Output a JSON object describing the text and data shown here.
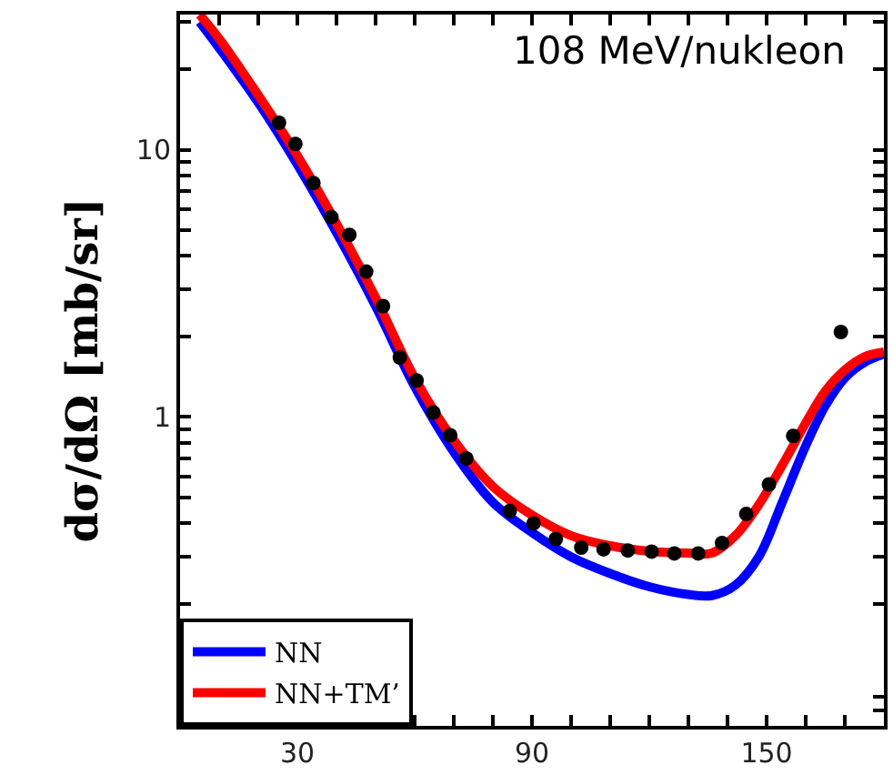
{
  "chart_data": {
    "type": "line",
    "ylabel": "dσ/dΩ [mb/sr]",
    "annotations": [
      "108 MeV/nukleon"
    ],
    "log": "y",
    "xlim": [
      0,
      180
    ],
    "ylim": [
      0.07,
      32
    ],
    "xticks": [
      {
        "value": 10,
        "label": null
      },
      {
        "value": 20,
        "label": null
      },
      30,
      {
        "value": 40,
        "label": null
      },
      {
        "value": 50,
        "label": null
      },
      {
        "value": 60,
        "label": null
      },
      {
        "value": 70,
        "label": null
      },
      {
        "value": 80,
        "label": null
      },
      90,
      {
        "value": 100,
        "label": null
      },
      {
        "value": 110,
        "label": null
      },
      {
        "value": 120,
        "label": null
      },
      {
        "value": 130,
        "label": null
      },
      {
        "value": 140,
        "label": null
      },
      150,
      {
        "value": 160,
        "label": null
      },
      {
        "value": 170,
        "label": null
      }
    ],
    "yticks": [
      {
        "value": 0.08,
        "label": null
      },
      {
        "value": 0.09,
        "label": null
      },
      {
        "value": 0.2,
        "label": null
      },
      {
        "value": 0.3,
        "label": null
      },
      {
        "value": 0.4,
        "label": null
      },
      {
        "value": 0.5,
        "label": null
      },
      {
        "value": 0.6,
        "label": null
      },
      {
        "value": 0.7,
        "label": null
      },
      {
        "value": 0.8,
        "label": null
      },
      {
        "value": 0.9,
        "label": null
      },
      1,
      {
        "value": 2,
        "label": null
      },
      {
        "value": 3,
        "label": null
      },
      {
        "value": 4,
        "label": null
      },
      {
        "value": 5,
        "label": null
      },
      {
        "value": 6,
        "label": null
      },
      {
        "value": 7,
        "label": null
      },
      {
        "value": 8,
        "label": null
      },
      {
        "value": 9,
        "label": null
      },
      10,
      {
        "value": 20,
        "label": null
      },
      {
        "value": 30,
        "label": null
      }
    ],
    "legend": "bottom left",
    "series": [
      {
        "name": "NN",
        "color": "#0000ff",
        "x": [
          5,
          10,
          20,
          30,
          40,
          50,
          60,
          70,
          80,
          90,
          100,
          110,
          120,
          130,
          136,
          142,
          148,
          154,
          160,
          165,
          170,
          175,
          180
        ],
        "values": [
          30,
          24,
          15,
          8.8,
          4.9,
          2.6,
          1.3,
          0.74,
          0.48,
          0.37,
          0.3,
          0.26,
          0.232,
          0.217,
          0.215,
          0.235,
          0.3,
          0.48,
          0.78,
          1.1,
          1.4,
          1.6,
          1.72
        ]
      },
      {
        "name": "NN+TM’",
        "color": "#ff0000",
        "x": [
          5,
          10,
          20,
          30,
          40,
          50,
          60,
          70,
          80,
          90,
          100,
          110,
          120,
          130,
          136,
          142,
          148,
          154,
          160,
          165,
          170,
          175,
          180
        ],
        "values": [
          32,
          26,
          16,
          9.5,
          5.3,
          2.8,
          1.4,
          0.82,
          0.55,
          0.43,
          0.36,
          0.33,
          0.315,
          0.31,
          0.31,
          0.36,
          0.47,
          0.66,
          0.95,
          1.25,
          1.5,
          1.68,
          1.75
        ]
      },
      {
        "type": "scatter",
        "marker": "circle",
        "color": "#000000",
        "x": [
          25.3,
          29.5,
          34.1,
          38.7,
          43.3,
          47.6,
          51.9,
          56.2,
          60.5,
          64.8,
          69.1,
          73.2,
          84.3,
          90.4,
          96.1,
          102.6,
          108.3,
          114.5,
          120.6,
          126.4,
          132.5,
          138.6,
          144.8,
          150.6,
          156.8,
          169
        ],
        "values": [
          12.6,
          10.5,
          7.5,
          5.6,
          4.8,
          3.5,
          2.6,
          1.67,
          1.37,
          1.04,
          0.855,
          0.7,
          0.445,
          0.4,
          0.35,
          0.325,
          0.32,
          0.317,
          0.314,
          0.309,
          0.309,
          0.338,
          0.434,
          0.56,
          0.85,
          2.08
        ]
      }
    ]
  }
}
